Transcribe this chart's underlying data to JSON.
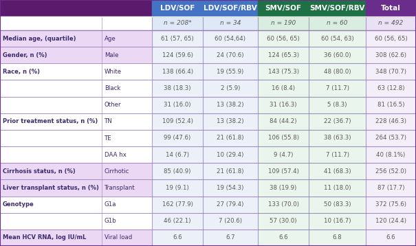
{
  "col_headers": [
    "LDV/SOF",
    "LDV/SOF/RBV",
    "SMV/SOF",
    "SMV/SOF/RBV",
    "Total"
  ],
  "col_header_colors": [
    "#4472C4",
    "#4472C4",
    "#1F7145",
    "#1F7145",
    "#6B2D8B"
  ],
  "n_row": [
    "n = 208*",
    "n = 34",
    "n = 190",
    "n = 60",
    "n = 492"
  ],
  "col_bg_colors": [
    "#C9D9F0",
    "#C9D9F0",
    "#C0E4CC",
    "#C0E4CC",
    "#DDD0EE"
  ],
  "rows": [
    [
      "Median age, (quartile)",
      "Age",
      "61 (57, 65)",
      "60 (54,64)",
      "60 (56, 65)",
      "60 (54, 63)",
      "60 (56, 65)"
    ],
    [
      "Gender, n (%)",
      "Male",
      "124 (59.6)",
      "24 (70.6)",
      "124 (65.3)",
      "36 (60.0)",
      "308 (62.6)"
    ],
    [
      "Race, n (%)",
      "White",
      "138 (66.4)",
      "19 (55.9)",
      "143 (75.3)",
      "48 (80.0)",
      "348 (70.7)"
    ],
    [
      "",
      "Black",
      "38 (18.3)",
      "2 (5.9)",
      "16 (8.4)",
      "7 (11.7)",
      "63 (12.8)"
    ],
    [
      "",
      "Other",
      "31 (16.0)",
      "13 (38.2)",
      "31 (16.3)",
      "5 (8.3)",
      "81 (16.5)"
    ],
    [
      "Prior treatment status, n (%)",
      "TN",
      "109 (52.4)",
      "13 (38.2)",
      "84 (44.2)",
      "22 (36.7)",
      "228 (46.3)"
    ],
    [
      "",
      "TE",
      "99 (47.6)",
      "21 (61.8)",
      "106 (55.8)",
      "38 (63.3)",
      "264 (53.7)"
    ],
    [
      "",
      "DAA hx",
      "14 (6.7)",
      "10 (29.4)",
      "9 (4.7)",
      "7 (11.7)",
      "40 (8.1%)"
    ],
    [
      "Cirrhosis status, n (%)",
      "Cirrhotic",
      "85 (40.9)",
      "21 (61.8)",
      "109 (57.4)",
      "41 (68.3)",
      "256 (52.0)"
    ],
    [
      "Liver transplant status, n (%)",
      "Transplant",
      "19 (9.1)",
      "19 (54.3)",
      "38 (19.9)",
      "11 (18.0)",
      "87 (17.7)"
    ],
    [
      "Genotype",
      "G1a",
      "162 (77.9)",
      "27 (79.4)",
      "133 (70.0)",
      "50 (83.3)",
      "372 (75.6)"
    ],
    [
      "",
      "G1b",
      "46 (22.1)",
      "7 (20.6)",
      "57 (30.0)",
      "10 (16.7)",
      "120 (24.4)"
    ],
    [
      "Mean HCV RNA, log IU/mL",
      "Viral load",
      "6.6",
      "6.7",
      "6.6",
      "6.8",
      "6.6"
    ]
  ],
  "row_highlight_col1": [
    true,
    true,
    false,
    false,
    false,
    false,
    false,
    false,
    true,
    true,
    false,
    false,
    true
  ],
  "header_bg": "#5B1A6B",
  "header_text_color": "#FFFFFF",
  "row_line_color": "#9B7BB5",
  "text_color_data": "#595959",
  "text_color_label": "#3D2B6B",
  "highlight_row_bg": "#EAD8F5"
}
